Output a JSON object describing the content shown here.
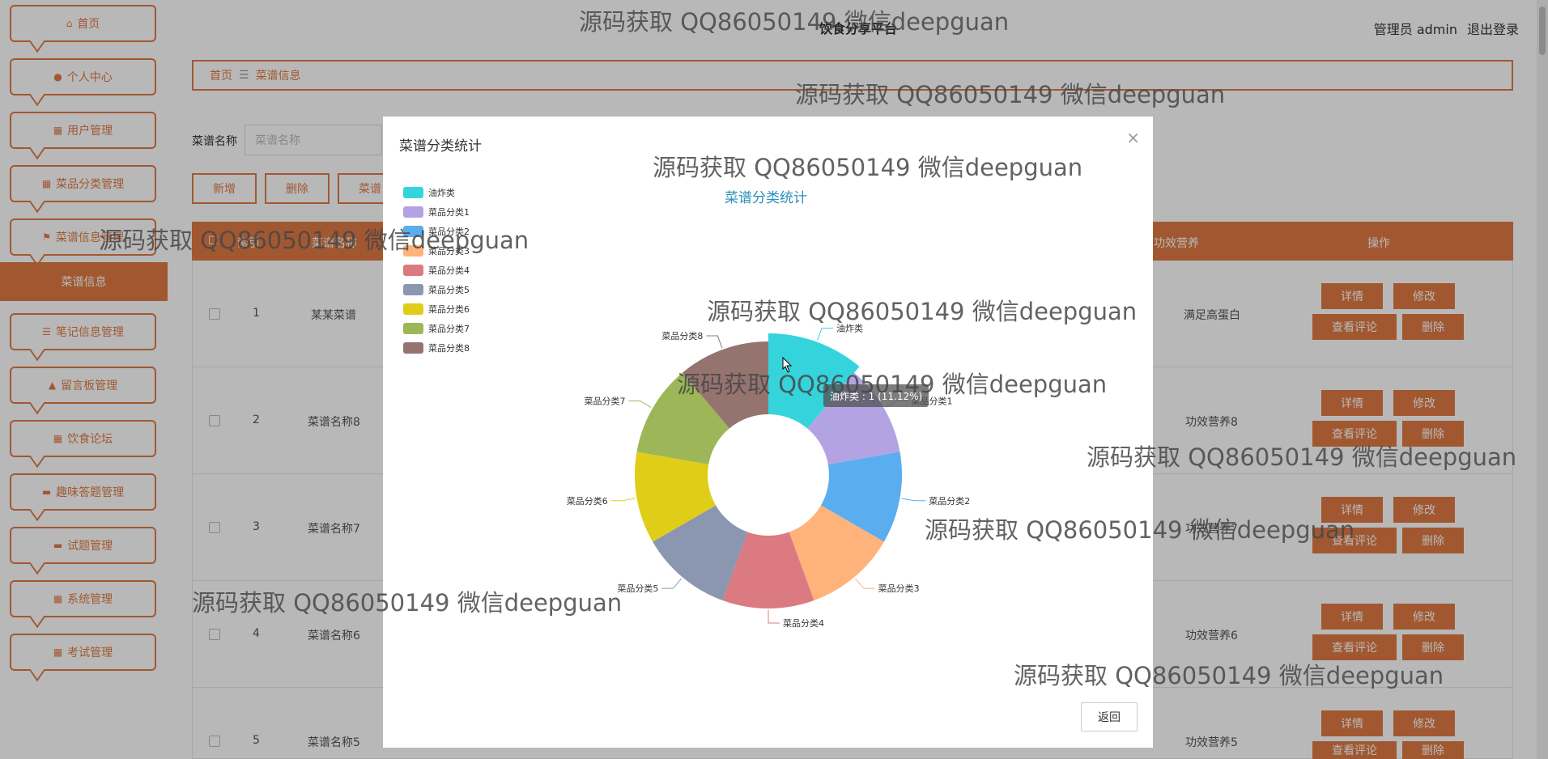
{
  "app": {
    "title": "饮食分享平台",
    "user_label": "管理员 admin",
    "logout_label": "退出登录"
  },
  "sidebar": {
    "items": [
      {
        "label": "首页",
        "icon": "home-icon"
      },
      {
        "label": "个人中心",
        "icon": "user-icon"
      },
      {
        "label": "用户管理",
        "icon": "grid-icon"
      },
      {
        "label": "菜品分类管理",
        "icon": "grid-icon"
      },
      {
        "label": "菜谱信息管理",
        "icon": "flag-icon"
      },
      {
        "label": "笔记信息管理",
        "icon": "sliders-icon"
      },
      {
        "label": "留言板管理",
        "icon": "thumbs-up-icon"
      },
      {
        "label": "饮食论坛",
        "icon": "grid-icon"
      },
      {
        "label": "趣味答题管理",
        "icon": "monitor-icon"
      },
      {
        "label": "试题管理",
        "icon": "monitor-icon"
      },
      {
        "label": "系统管理",
        "icon": "grid-icon"
      },
      {
        "label": "考试管理",
        "icon": "grid-icon"
      }
    ],
    "active_sub": "菜谱信息"
  },
  "breadcrumb": {
    "home": "首页",
    "current": "菜谱信息"
  },
  "search": {
    "label": "菜谱名称",
    "placeholder": "菜谱名称"
  },
  "actions": {
    "add": "新增",
    "delete": "删除",
    "stats": "菜谱"
  },
  "table": {
    "headers": {
      "index": "索引",
      "name": "菜谱名称",
      "nutrition": "功效营养",
      "ops": "操作"
    },
    "rows": [
      {
        "index": "1",
        "name": "某某菜谱",
        "nutrition": "满足高蛋白"
      },
      {
        "index": "2",
        "name": "菜谱名称8",
        "nutrition": "功效营养8"
      },
      {
        "index": "3",
        "name": "菜谱名称7",
        "nutrition": "功效营养7"
      },
      {
        "index": "4",
        "name": "菜谱名称6",
        "nutrition": "功效营养6"
      },
      {
        "index": "5",
        "name": "菜谱名称5",
        "nutrition": "功效营养5"
      }
    ],
    "op_labels": {
      "detail": "详情",
      "edit": "修改",
      "comments": "查看评论",
      "delete": "删除"
    }
  },
  "modal": {
    "title": "菜谱分类统计",
    "close": "×",
    "back": "返回",
    "tooltip": "油炸类 : 1 (11.12%)"
  },
  "chart_data": {
    "type": "pie",
    "title": "菜谱分类统计",
    "donut": true,
    "legend_position": "top-left",
    "categories": [
      "油炸类",
      "菜品分类1",
      "菜品分类2",
      "菜品分类3",
      "菜品分类4",
      "菜品分类5",
      "菜品分类6",
      "菜品分类7",
      "菜品分类8"
    ],
    "values": [
      1,
      1,
      1,
      1,
      1,
      1,
      1,
      1,
      1
    ],
    "colors": [
      "#35d4dc",
      "#b3a3e3",
      "#5aaef0",
      "#ffb37b",
      "#db7a80",
      "#8b97b0",
      "#e0cd17",
      "#9db657",
      "#957470"
    ],
    "highlighted": "油炸类"
  },
  "watermark": "源码获取 QQ86050149 微信deepguan"
}
